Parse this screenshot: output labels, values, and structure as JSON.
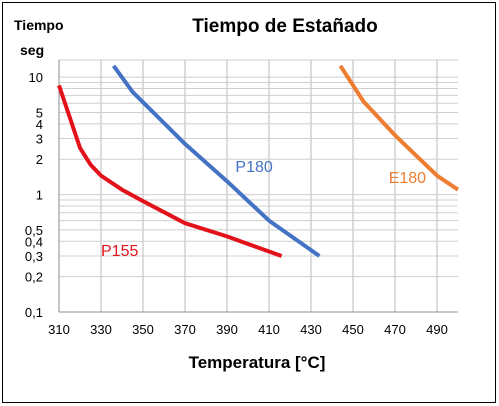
{
  "chart_data": {
    "type": "line",
    "title": "Tiempo de Estañado",
    "ylabel": "Tiempo",
    "yunit": "seg",
    "xlabel": "Temperatura [°C]",
    "xlim": [
      310,
      500
    ],
    "ylim": [
      0.1,
      14
    ],
    "yscale": "log",
    "grid": true,
    "legend": "none",
    "x_ticks": [
      310,
      330,
      350,
      370,
      390,
      410,
      430,
      450,
      470,
      490
    ],
    "y_ticks": [
      {
        "value": 0.1,
        "label": "0,1"
      },
      {
        "value": 0.2,
        "label": "0,2"
      },
      {
        "value": 0.3,
        "label": "0,3"
      },
      {
        "value": 0.4,
        "label": "0,4"
      },
      {
        "value": 0.5,
        "label": "0,5"
      },
      {
        "value": 1,
        "label": "1"
      },
      {
        "value": 2,
        "label": "2"
      },
      {
        "value": 3,
        "label": "3"
      },
      {
        "value": 4,
        "label": "4"
      },
      {
        "value": 5,
        "label": "5"
      },
      {
        "value": 10,
        "label": "10"
      }
    ],
    "series": [
      {
        "name": "P155",
        "color": "#e3121a",
        "label_at": [
          330,
          0.3
        ],
        "points": [
          [
            310,
            8.5
          ],
          [
            320,
            2.5
          ],
          [
            325,
            1.8
          ],
          [
            330,
            1.45
          ],
          [
            340,
            1.1
          ],
          [
            350,
            0.88
          ],
          [
            370,
            0.57
          ],
          [
            390,
            0.44
          ],
          [
            416,
            0.3
          ]
        ]
      },
      {
        "name": "P180",
        "color": "#4472c4",
        "label_at": [
          394,
          1.55
        ],
        "points": [
          [
            336,
            12.5
          ],
          [
            345,
            7.5
          ],
          [
            370,
            2.7
          ],
          [
            390,
            1.3
          ],
          [
            410,
            0.6
          ],
          [
            434,
            0.3
          ]
        ]
      },
      {
        "name": "E180",
        "color": "#ed7d31",
        "label_at": [
          467,
          1.25
        ],
        "points": [
          [
            444,
            12.5
          ],
          [
            455,
            6.2
          ],
          [
            470,
            3.2
          ],
          [
            490,
            1.45
          ],
          [
            500,
            1.1
          ]
        ]
      }
    ]
  }
}
